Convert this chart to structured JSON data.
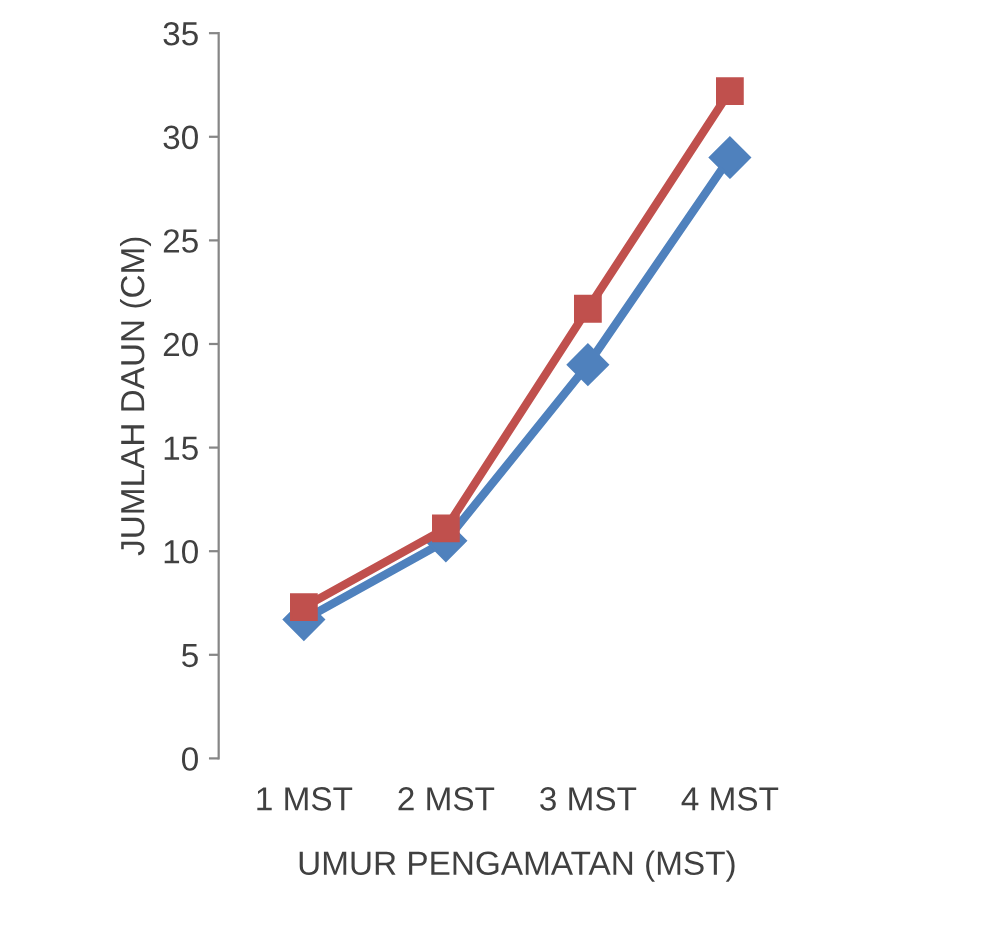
{
  "chart_data": {
    "type": "line",
    "xlabel": "UMUR PENGAMATAN (MST)",
    "ylabel": "JUMLAH DAUN (CM)",
    "categories": [
      "1 MST",
      "2 MST",
      "3 MST",
      "4 MST"
    ],
    "series": [
      {
        "color": "#4f81bd",
        "marker": "diamond",
        "values": [
          6.7,
          10.5,
          19.0,
          29.0
        ]
      },
      {
        "color": "#c0504d",
        "marker": "square",
        "values": [
          7.3,
          11.1,
          21.7,
          32.2
        ]
      }
    ],
    "ylim": [
      0,
      35
    ],
    "yticks": [
      0,
      5,
      10,
      15,
      20,
      25,
      30,
      35
    ],
    "grid": false,
    "line_style": "solid"
  }
}
